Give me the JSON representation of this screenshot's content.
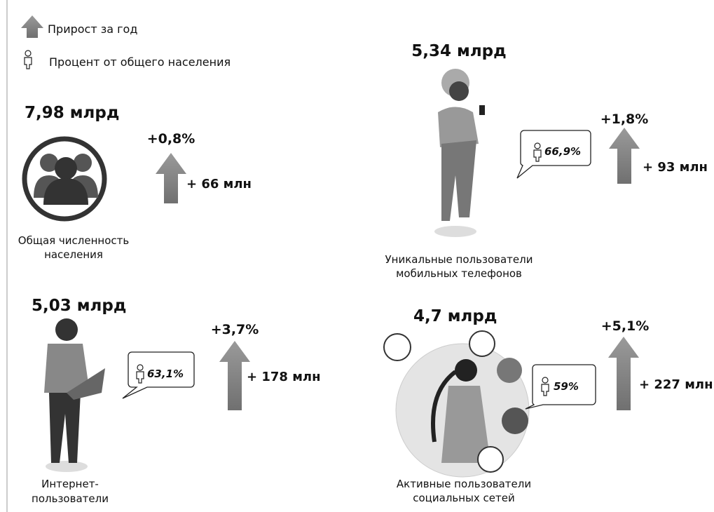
{
  "legend": {
    "growth": "Прирост за год",
    "share": "Процент от общего населения"
  },
  "blocks": [
    {
      "value": "7,98 млрд",
      "label": [
        "Общая численность",
        "населения"
      ],
      "growth_percent": "+0,8%",
      "growth_absolute": "+ 66 млн"
    },
    {
      "value": "5,34 млрд",
      "label": [
        "Уникальные пользователи",
        "мобильных телефонов"
      ],
      "share": "66,9%",
      "growth_percent": "+1,8%",
      "growth_absolute": "+ 93 млн"
    },
    {
      "value": "5,03 млрд",
      "label": [
        "Интернет-",
        "пользователи"
      ],
      "share": "63,1%",
      "growth_percent": "+3,7%",
      "growth_absolute": "+ 178 млн"
    },
    {
      "value": "4,7 млрд",
      "label": [
        "Активные пользователи",
        "социальных сетей"
      ],
      "share": "59%",
      "growth_percent": "+5,1%",
      "growth_absolute": "+ 227 млн"
    }
  ]
}
